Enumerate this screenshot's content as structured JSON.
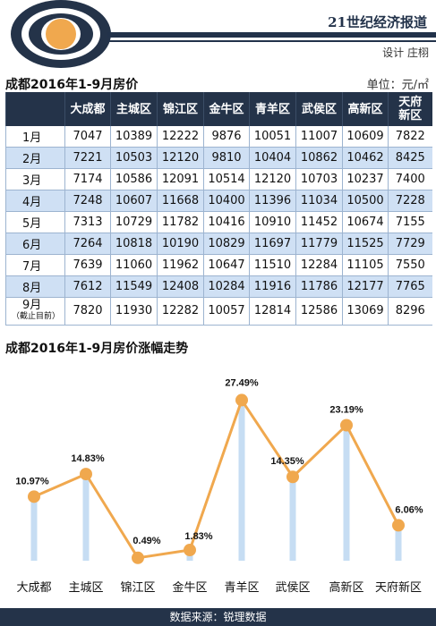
{
  "header": {
    "publication": "21世纪经济报道",
    "designer": "设计 庄栩"
  },
  "table": {
    "title": "成都2016年1-9月房价",
    "unit": "单位：元/㎡",
    "columns": [
      "",
      "大成都",
      "主城区",
      "锦江区",
      "金牛区",
      "青羊区",
      "武侯区",
      "高新区",
      "天府新区"
    ],
    "rows": [
      {
        "month": "1月",
        "note": "",
        "values": [
          7047,
          10389,
          12222,
          9876,
          10051,
          11007,
          10609,
          7822
        ]
      },
      {
        "month": "2月",
        "note": "",
        "values": [
          7221,
          10503,
          12120,
          9810,
          10404,
          10862,
          10462,
          8425
        ]
      },
      {
        "month": "3月",
        "note": "",
        "values": [
          7174,
          10586,
          12091,
          10514,
          12120,
          10703,
          10237,
          7400
        ]
      },
      {
        "month": "4月",
        "note": "",
        "values": [
          7248,
          10607,
          11668,
          10400,
          11396,
          11034,
          10500,
          7228
        ]
      },
      {
        "month": "5月",
        "note": "",
        "values": [
          7313,
          10729,
          11782,
          10416,
          10910,
          11452,
          10674,
          7155
        ]
      },
      {
        "month": "6月",
        "note": "",
        "values": [
          7264,
          10818,
          10190,
          10829,
          11697,
          11779,
          11525,
          7729
        ]
      },
      {
        "month": "7月",
        "note": "",
        "values": [
          7639,
          11060,
          11962,
          10647,
          11510,
          12284,
          11105,
          7550
        ]
      },
      {
        "month": "8月",
        "note": "",
        "values": [
          7612,
          11549,
          12408,
          10284,
          11916,
          11786,
          12177,
          7765
        ]
      },
      {
        "month": "9月",
        "note": "（截止目前）",
        "values": [
          7820,
          11930,
          12282,
          10057,
          12814,
          12586,
          13069,
          8296
        ]
      }
    ]
  },
  "chart_data": {
    "type": "line",
    "title": "成都2016年1-9月房价涨幅走势",
    "categories": [
      "大成都",
      "主城区",
      "锦江区",
      "金牛区",
      "青羊区",
      "武侯区",
      "高新区",
      "天府新区"
    ],
    "values": [
      10.97,
      14.83,
      0.49,
      1.83,
      27.49,
      14.35,
      23.19,
      6.06
    ],
    "labels": [
      "10.97%",
      "14.83%",
      "0.49%",
      "1.83%",
      "27.49%",
      "14.35%",
      "23.19%",
      "6.06%"
    ],
    "ylim": [
      0,
      30
    ],
    "grid": false,
    "colors": {
      "line": "#f0a84e",
      "bar": "#c6ddf3",
      "marker": "#f0a84e"
    }
  },
  "footer": "数据来源：锐理数据"
}
